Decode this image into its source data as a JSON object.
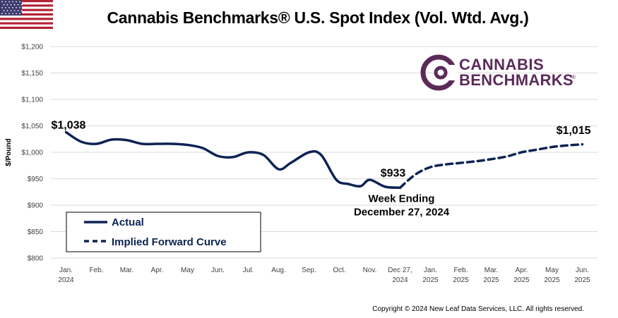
{
  "header": {
    "title": "Cannabis Benchmarks® U.S. Spot Index (Vol. Wtd. Avg.)",
    "flag": "us-flag-icon",
    "copyright": "Copyright © 2024 New Leaf Data Services, LLC. All rights reserved."
  },
  "logo": {
    "line1": "CANNABIS",
    "line2": "BENCHMARKS",
    "mark": "®",
    "color": "#5c2a59"
  },
  "colors": {
    "actual": "#0d2354",
    "forward": "#0d2354",
    "grid": "#d9d9d9"
  },
  "chart_data": {
    "type": "line",
    "title": "Cannabis Benchmarks® U.S. Spot Index (Vol. Wtd. Avg.)",
    "ylabel": "$/Pound",
    "xlabel": "",
    "ylim": [
      800,
      1200
    ],
    "yticks": [
      "$800",
      "$850",
      "$900",
      "$950",
      "$1,000",
      "$1,050",
      "$1,100",
      "$1,150",
      "$1,200"
    ],
    "ytick_values": [
      800,
      850,
      900,
      950,
      1000,
      1050,
      1100,
      1150,
      1200
    ],
    "categories": [
      [
        "Jan.",
        "2024"
      ],
      [
        "Feb.",
        ""
      ],
      [
        "Mar.",
        ""
      ],
      [
        "Apr.",
        ""
      ],
      [
        "May",
        ""
      ],
      [
        "Jun.",
        ""
      ],
      [
        "Jul.",
        ""
      ],
      [
        "Aug.",
        ""
      ],
      [
        "Sep.",
        ""
      ],
      [
        "Oct.",
        ""
      ],
      [
        "Nov.",
        ""
      ],
      [
        "Dec 27,",
        "2024"
      ],
      [
        "Jan.",
        "2025"
      ],
      [
        "Feb.",
        "2025"
      ],
      [
        "Mar.",
        "2025"
      ],
      [
        "Apr.",
        "2025"
      ],
      [
        "May",
        "2025"
      ],
      [
        "Jun.",
        "2025"
      ]
    ],
    "grid": true,
    "legend_position": "bottom-left",
    "series": [
      {
        "name": "Actual",
        "style": "solid",
        "x": [
          0,
          0.5,
          1,
          1.5,
          2,
          2.5,
          3,
          3.5,
          4,
          4.5,
          5,
          5.5,
          6,
          6.5,
          7,
          7.4,
          8,
          8.4,
          8.9,
          9.3,
          9.7,
          10,
          10.5,
          11
        ],
        "y": [
          1038,
          1020,
          1016,
          1024,
          1023,
          1016,
          1016,
          1016,
          1014,
          1008,
          993,
          991,
          1000,
          995,
          968,
          980,
          1000,
          995,
          948,
          940,
          936,
          948,
          935,
          933
        ]
      },
      {
        "name": "Implied Forward Curve",
        "style": "dashed",
        "x": [
          11,
          11.5,
          12,
          12.5,
          13,
          13.5,
          14,
          14.5,
          15,
          15.5,
          16,
          16.5,
          17
        ],
        "y": [
          933,
          958,
          972,
          977,
          980,
          983,
          987,
          992,
          1000,
          1005,
          1010,
          1013,
          1015
        ]
      }
    ],
    "annotations": [
      {
        "text": "$1,038",
        "x": 0,
        "y": 1038
      },
      {
        "text": "$933",
        "x": 11,
        "y": 933
      },
      {
        "text": "Week Ending",
        "x": 11,
        "y": 933
      },
      {
        "text": "December 27, 2024",
        "x": 11,
        "y": 933
      },
      {
        "text": "$1,015",
        "x": 17,
        "y": 1015
      }
    ]
  }
}
